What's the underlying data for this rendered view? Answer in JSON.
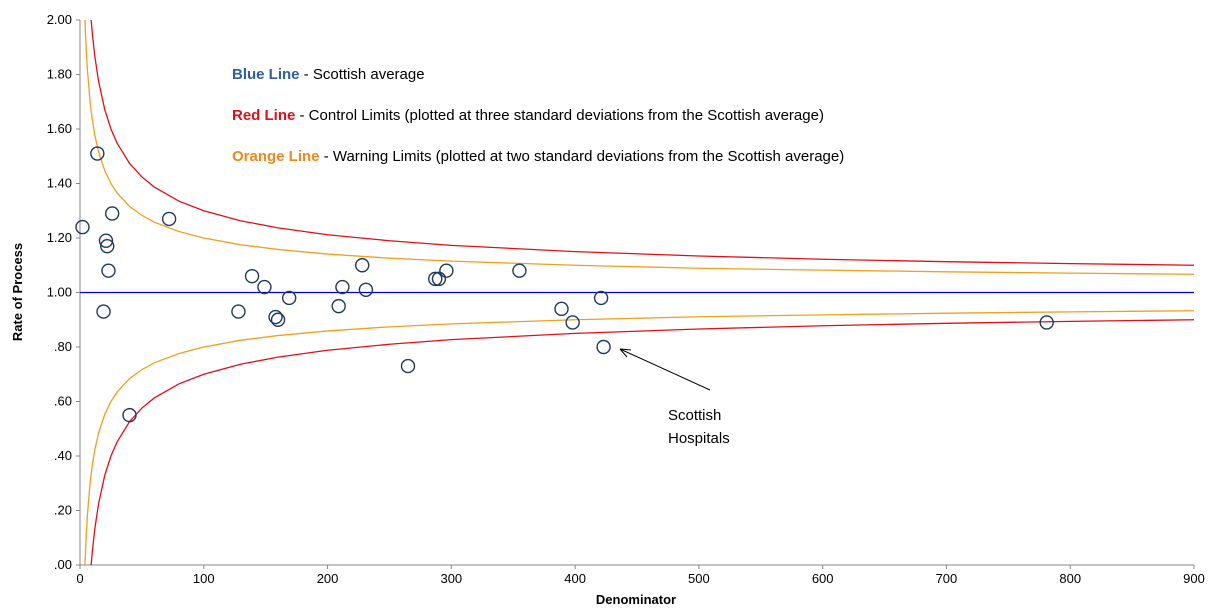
{
  "chart_data": {
    "type": "funnel",
    "xlabel": "Denominator",
    "ylabel": "Rate of Process",
    "xlim": [
      0,
      900
    ],
    "xticks": [
      0,
      100,
      200,
      300,
      400,
      500,
      600,
      700,
      800,
      900
    ],
    "ylim": [
      0,
      2
    ],
    "yticks": [
      {
        "value": 0,
        "label": ".00"
      },
      {
        "value": 0.2,
        "label": ".20"
      },
      {
        "value": 0.4,
        "label": ".40"
      },
      {
        "value": 0.6,
        "label": ".60"
      },
      {
        "value": 0.8,
        "label": ".80"
      },
      {
        "value": 1,
        "label": "1.00"
      },
      {
        "value": 1.2,
        "label": "1.20"
      },
      {
        "value": 1.4,
        "label": "1.40"
      },
      {
        "value": 1.6,
        "label": "1.60"
      },
      {
        "value": 1.8,
        "label": "1.80"
      },
      {
        "value": 2,
        "label": "2.00"
      }
    ],
    "grid": false,
    "notes": [
      {
        "label": "Blue Line",
        "text": " - Scottish average",
        "color": "#2f5f9e"
      },
      {
        "label": "Red Line",
        "text": " - Control Limits (plotted at three standard deviations from the Scottish average)",
        "color": "#e0101a"
      },
      {
        "label": "Orange Line",
        "text": " - Warning Limits (plotted at two standard deviations from the Scottish average)",
        "color": "#ee8a1c"
      }
    ],
    "annotation": [
      "Scottish",
      "Hospitals"
    ],
    "lines": [
      {
        "color": "#0000e0",
        "x": [
          0,
          900
        ],
        "values": [
          1,
          1
        ]
      },
      {
        "color": "#e0101a",
        "x": [
          9,
          10,
          12,
          15,
          20,
          25,
          30,
          40,
          50,
          60,
          80,
          100,
          130,
          160,
          200,
          250,
          300,
          400,
          500,
          600,
          700,
          800,
          900
        ],
        "values": [
          2.0,
          1.949,
          1.866,
          1.775,
          1.671,
          1.6,
          1.548,
          1.474,
          1.424,
          1.387,
          1.335,
          1.3,
          1.263,
          1.237,
          1.212,
          1.19,
          1.173,
          1.15,
          1.134,
          1.122,
          1.113,
          1.106,
          1.1
        ]
      },
      {
        "color": "#e0101a",
        "x": [
          9,
          10,
          12,
          15,
          20,
          25,
          30,
          40,
          50,
          60,
          80,
          100,
          130,
          160,
          200,
          250,
          300,
          400,
          500,
          600,
          700,
          800,
          900
        ],
        "values": [
          0.0,
          0.051,
          0.134,
          0.225,
          0.329,
          0.4,
          0.452,
          0.526,
          0.576,
          0.613,
          0.665,
          0.7,
          0.737,
          0.763,
          0.788,
          0.81,
          0.827,
          0.85,
          0.866,
          0.878,
          0.887,
          0.894,
          0.9
        ]
      },
      {
        "color": "#f0a020",
        "x": [
          4,
          5,
          6,
          8,
          9,
          10,
          12,
          15,
          20,
          25,
          30,
          40,
          50,
          60,
          80,
          100,
          130,
          160,
          200,
          250,
          300,
          400,
          500,
          600,
          700,
          800,
          900
        ],
        "values": [
          2.0,
          1.894,
          1.816,
          1.707,
          1.667,
          1.632,
          1.577,
          1.516,
          1.447,
          1.4,
          1.365,
          1.316,
          1.283,
          1.258,
          1.224,
          1.2,
          1.175,
          1.158,
          1.141,
          1.126,
          1.115,
          1.1,
          1.089,
          1.082,
          1.076,
          1.071,
          1.067
        ]
      },
      {
        "color": "#f0a020",
        "x": [
          4,
          5,
          6,
          8,
          9,
          10,
          12,
          15,
          20,
          25,
          30,
          40,
          50,
          60,
          80,
          100,
          130,
          160,
          200,
          250,
          300,
          400,
          500,
          600,
          700,
          800,
          900
        ],
        "values": [
          0.0,
          0.106,
          0.184,
          0.293,
          0.333,
          0.368,
          0.423,
          0.484,
          0.553,
          0.6,
          0.635,
          0.684,
          0.717,
          0.742,
          0.776,
          0.8,
          0.825,
          0.842,
          0.859,
          0.874,
          0.885,
          0.9,
          0.911,
          0.918,
          0.924,
          0.929,
          0.933
        ]
      }
    ],
    "points": {
      "color": "#1f3864",
      "x": [
        2,
        14,
        26,
        21,
        22,
        23,
        19,
        40,
        72,
        128,
        139,
        149,
        158,
        160,
        169,
        209,
        212,
        228,
        231,
        265,
        287,
        290,
        296,
        355,
        389,
        398,
        421,
        423,
        781
      ],
      "values": [
        1.24,
        1.51,
        1.29,
        1.19,
        1.17,
        1.08,
        0.93,
        0.55,
        1.27,
        0.93,
        1.06,
        1.02,
        0.91,
        0.9,
        0.98,
        0.95,
        1.02,
        1.1,
        1.01,
        0.73,
        1.05,
        1.05,
        1.08,
        1.08,
        0.94,
        0.89,
        0.98,
        0.8,
        0.89
      ]
    }
  }
}
